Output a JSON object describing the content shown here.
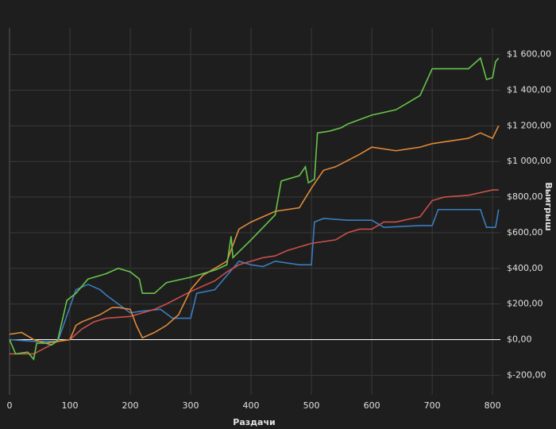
{
  "chart_data": {
    "type": "line",
    "x_label": "Раздачи",
    "y_label": "Выигрыш",
    "xlim": [
      0,
      813
    ],
    "ylim": [
      -310,
      1750
    ],
    "xticks": [
      0,
      100,
      200,
      300,
      400,
      500,
      600,
      700,
      800
    ],
    "yticks": [
      {
        "value": -200,
        "label": "$-200,00"
      },
      {
        "value": 0,
        "label": "$0,00"
      },
      {
        "value": 200,
        "label": "$200,00"
      },
      {
        "value": 400,
        "label": "$400,00"
      },
      {
        "value": 600,
        "label": "$600,00"
      },
      {
        "value": 800,
        "label": "$800,00"
      },
      {
        "value": 1000,
        "label": "$1 000,00"
      },
      {
        "value": 1200,
        "label": "$1 200,00"
      },
      {
        "value": 1400,
        "label": "$1 400,00"
      },
      {
        "value": 1600,
        "label": "$1 600,00"
      }
    ],
    "grid": true,
    "series": [
      {
        "color": "#3a7dc0",
        "x": [
          0,
          40,
          80,
          110,
          130,
          150,
          160,
          180,
          200,
          220,
          250,
          270,
          300,
          310,
          340,
          380,
          400,
          420,
          440,
          480,
          500,
          505,
          520,
          560,
          600,
          620,
          680,
          700,
          710,
          760,
          780,
          790,
          805,
          810
        ],
        "values": [
          0,
          -10,
          -10,
          280,
          310,
          280,
          250,
          200,
          150,
          160,
          170,
          120,
          120,
          260,
          280,
          440,
          420,
          410,
          440,
          420,
          420,
          660,
          680,
          670,
          670,
          630,
          640,
          640,
          730,
          730,
          730,
          630,
          630,
          730
        ]
      },
      {
        "color": "#c9504a",
        "x": [
          0,
          40,
          80,
          100,
          120,
          140,
          160,
          200,
          240,
          260,
          300,
          320,
          340,
          360,
          380,
          420,
          440,
          460,
          500,
          540,
          560,
          580,
          600,
          620,
          640,
          680,
          700,
          720,
          760,
          800,
          810
        ],
        "values": [
          -80,
          -80,
          -10,
          0,
          60,
          100,
          120,
          130,
          170,
          200,
          270,
          300,
          330,
          380,
          420,
          460,
          470,
          500,
          540,
          560,
          600,
          620,
          620,
          660,
          660,
          690,
          780,
          800,
          810,
          840,
          840
        ]
      },
      {
        "color": "#e08a3a",
        "x": [
          0,
          20,
          30,
          40,
          60,
          80,
          100,
          110,
          120,
          150,
          170,
          180,
          200,
          210,
          220,
          240,
          260,
          280,
          300,
          320,
          360,
          380,
          400,
          440,
          480,
          500,
          520,
          540,
          580,
          600,
          640,
          680,
          700,
          760,
          780,
          800,
          810
        ],
        "values": [
          30,
          40,
          20,
          0,
          -20,
          -10,
          0,
          80,
          100,
          140,
          180,
          180,
          170,
          80,
          10,
          40,
          80,
          140,
          280,
          360,
          440,
          620,
          660,
          720,
          740,
          850,
          950,
          970,
          1040,
          1080,
          1060,
          1080,
          1100,
          1130,
          1160,
          1130,
          1200
        ]
      },
      {
        "color": "#66c44a",
        "x": [
          0,
          10,
          30,
          40,
          45,
          60,
          70,
          80,
          95,
          110,
          120,
          130,
          160,
          180,
          200,
          215,
          220,
          240,
          260,
          300,
          340,
          360,
          367,
          370,
          400,
          440,
          450,
          480,
          490,
          495,
          505,
          510,
          530,
          550,
          560,
          600,
          640,
          680,
          700,
          720,
          760,
          780,
          790,
          800,
          805,
          810
        ],
        "values": [
          0,
          -80,
          -70,
          -110,
          -20,
          -20,
          -30,
          0,
          220,
          260,
          300,
          340,
          370,
          400,
          380,
          340,
          260,
          260,
          320,
          350,
          390,
          420,
          580,
          460,
          560,
          700,
          890,
          920,
          970,
          880,
          900,
          1160,
          1170,
          1190,
          1210,
          1260,
          1290,
          1370,
          1520,
          1520,
          1520,
          1580,
          1460,
          1470,
          1560,
          1580
        ]
      }
    ]
  }
}
